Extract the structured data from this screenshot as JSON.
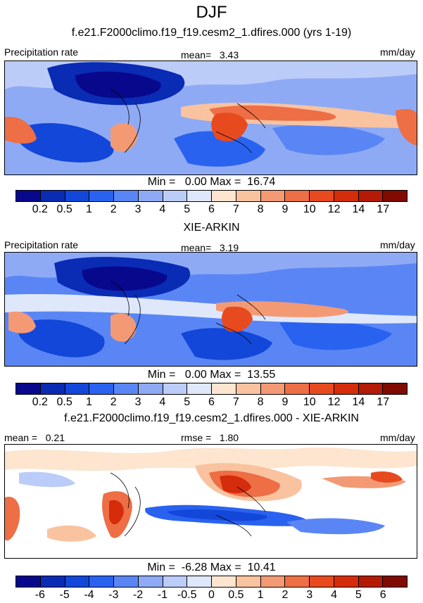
{
  "figure": {
    "title": "DJF"
  },
  "panels": [
    {
      "subtitle": "f.e21.F2000climo.f19_f19.cesm2_1.dfires.000 (yrs 1-19)",
      "left_label": "Precipitation rate",
      "center_label": "mean=   3.43",
      "right_label": "mm/day",
      "minmax": "Min =   0.00 Max =  16.74",
      "colorbar": {
        "colors": [
          "#08088c",
          "#0a2bb4",
          "#1347d9",
          "#2a62f0",
          "#5a86f5",
          "#8faaf5",
          "#bcccf8",
          "#dfe8fb",
          "#fde5cf",
          "#f9c3a0",
          "#f39a75",
          "#ee6e45",
          "#e84a1f",
          "#d52c0b",
          "#b31b07",
          "#7f0b03"
        ],
        "ticks": [
          "0.2",
          "0.5",
          "1",
          "2",
          "3",
          "4",
          "5",
          "6",
          "7",
          "8",
          "9",
          "10",
          "12",
          "14",
          "17"
        ]
      }
    },
    {
      "subtitle": "XIE-ARKIN",
      "left_label": "Precipitation rate",
      "center_label": "mean=   3.19",
      "right_label": "mm/day",
      "minmax": "Min =   0.00 Max =  13.55",
      "colorbar": {
        "colors": [
          "#08088c",
          "#0a2bb4",
          "#1347d9",
          "#2a62f0",
          "#5a86f5",
          "#8faaf5",
          "#bcccf8",
          "#dfe8fb",
          "#fde5cf",
          "#f9c3a0",
          "#f39a75",
          "#ee6e45",
          "#e84a1f",
          "#d52c0b",
          "#b31b07",
          "#7f0b03"
        ],
        "ticks": [
          "0.2",
          "0.5",
          "1",
          "2",
          "3",
          "4",
          "5",
          "6",
          "7",
          "8",
          "9",
          "10",
          "12",
          "14",
          "17"
        ]
      }
    },
    {
      "subtitle": "f.e21.F2000climo.f19_f19.cesm2_1.dfires.000 - XIE-ARKIN",
      "left_label": "mean =   0.21",
      "center_label": "rmse =   1.80",
      "right_label": "mm/day",
      "minmax": "Min =  -6.28 Max =  10.41",
      "colorbar": {
        "colors": [
          "#08088c",
          "#0a2bb4",
          "#1347d9",
          "#2a62f0",
          "#5a86f5",
          "#8faaf5",
          "#bcccf8",
          "#dfe8fb",
          "#fde5cf",
          "#f9c3a0",
          "#f39a75",
          "#ee6e45",
          "#e84a1f",
          "#d52c0b",
          "#b31b07",
          "#7f0b03"
        ],
        "ticks": [
          "-6",
          "-5",
          "-4",
          "-3",
          "-2",
          "-1",
          "-0.5",
          "0",
          "0.5",
          "1",
          "2",
          "3",
          "4",
          "5",
          "6"
        ]
      }
    }
  ]
}
